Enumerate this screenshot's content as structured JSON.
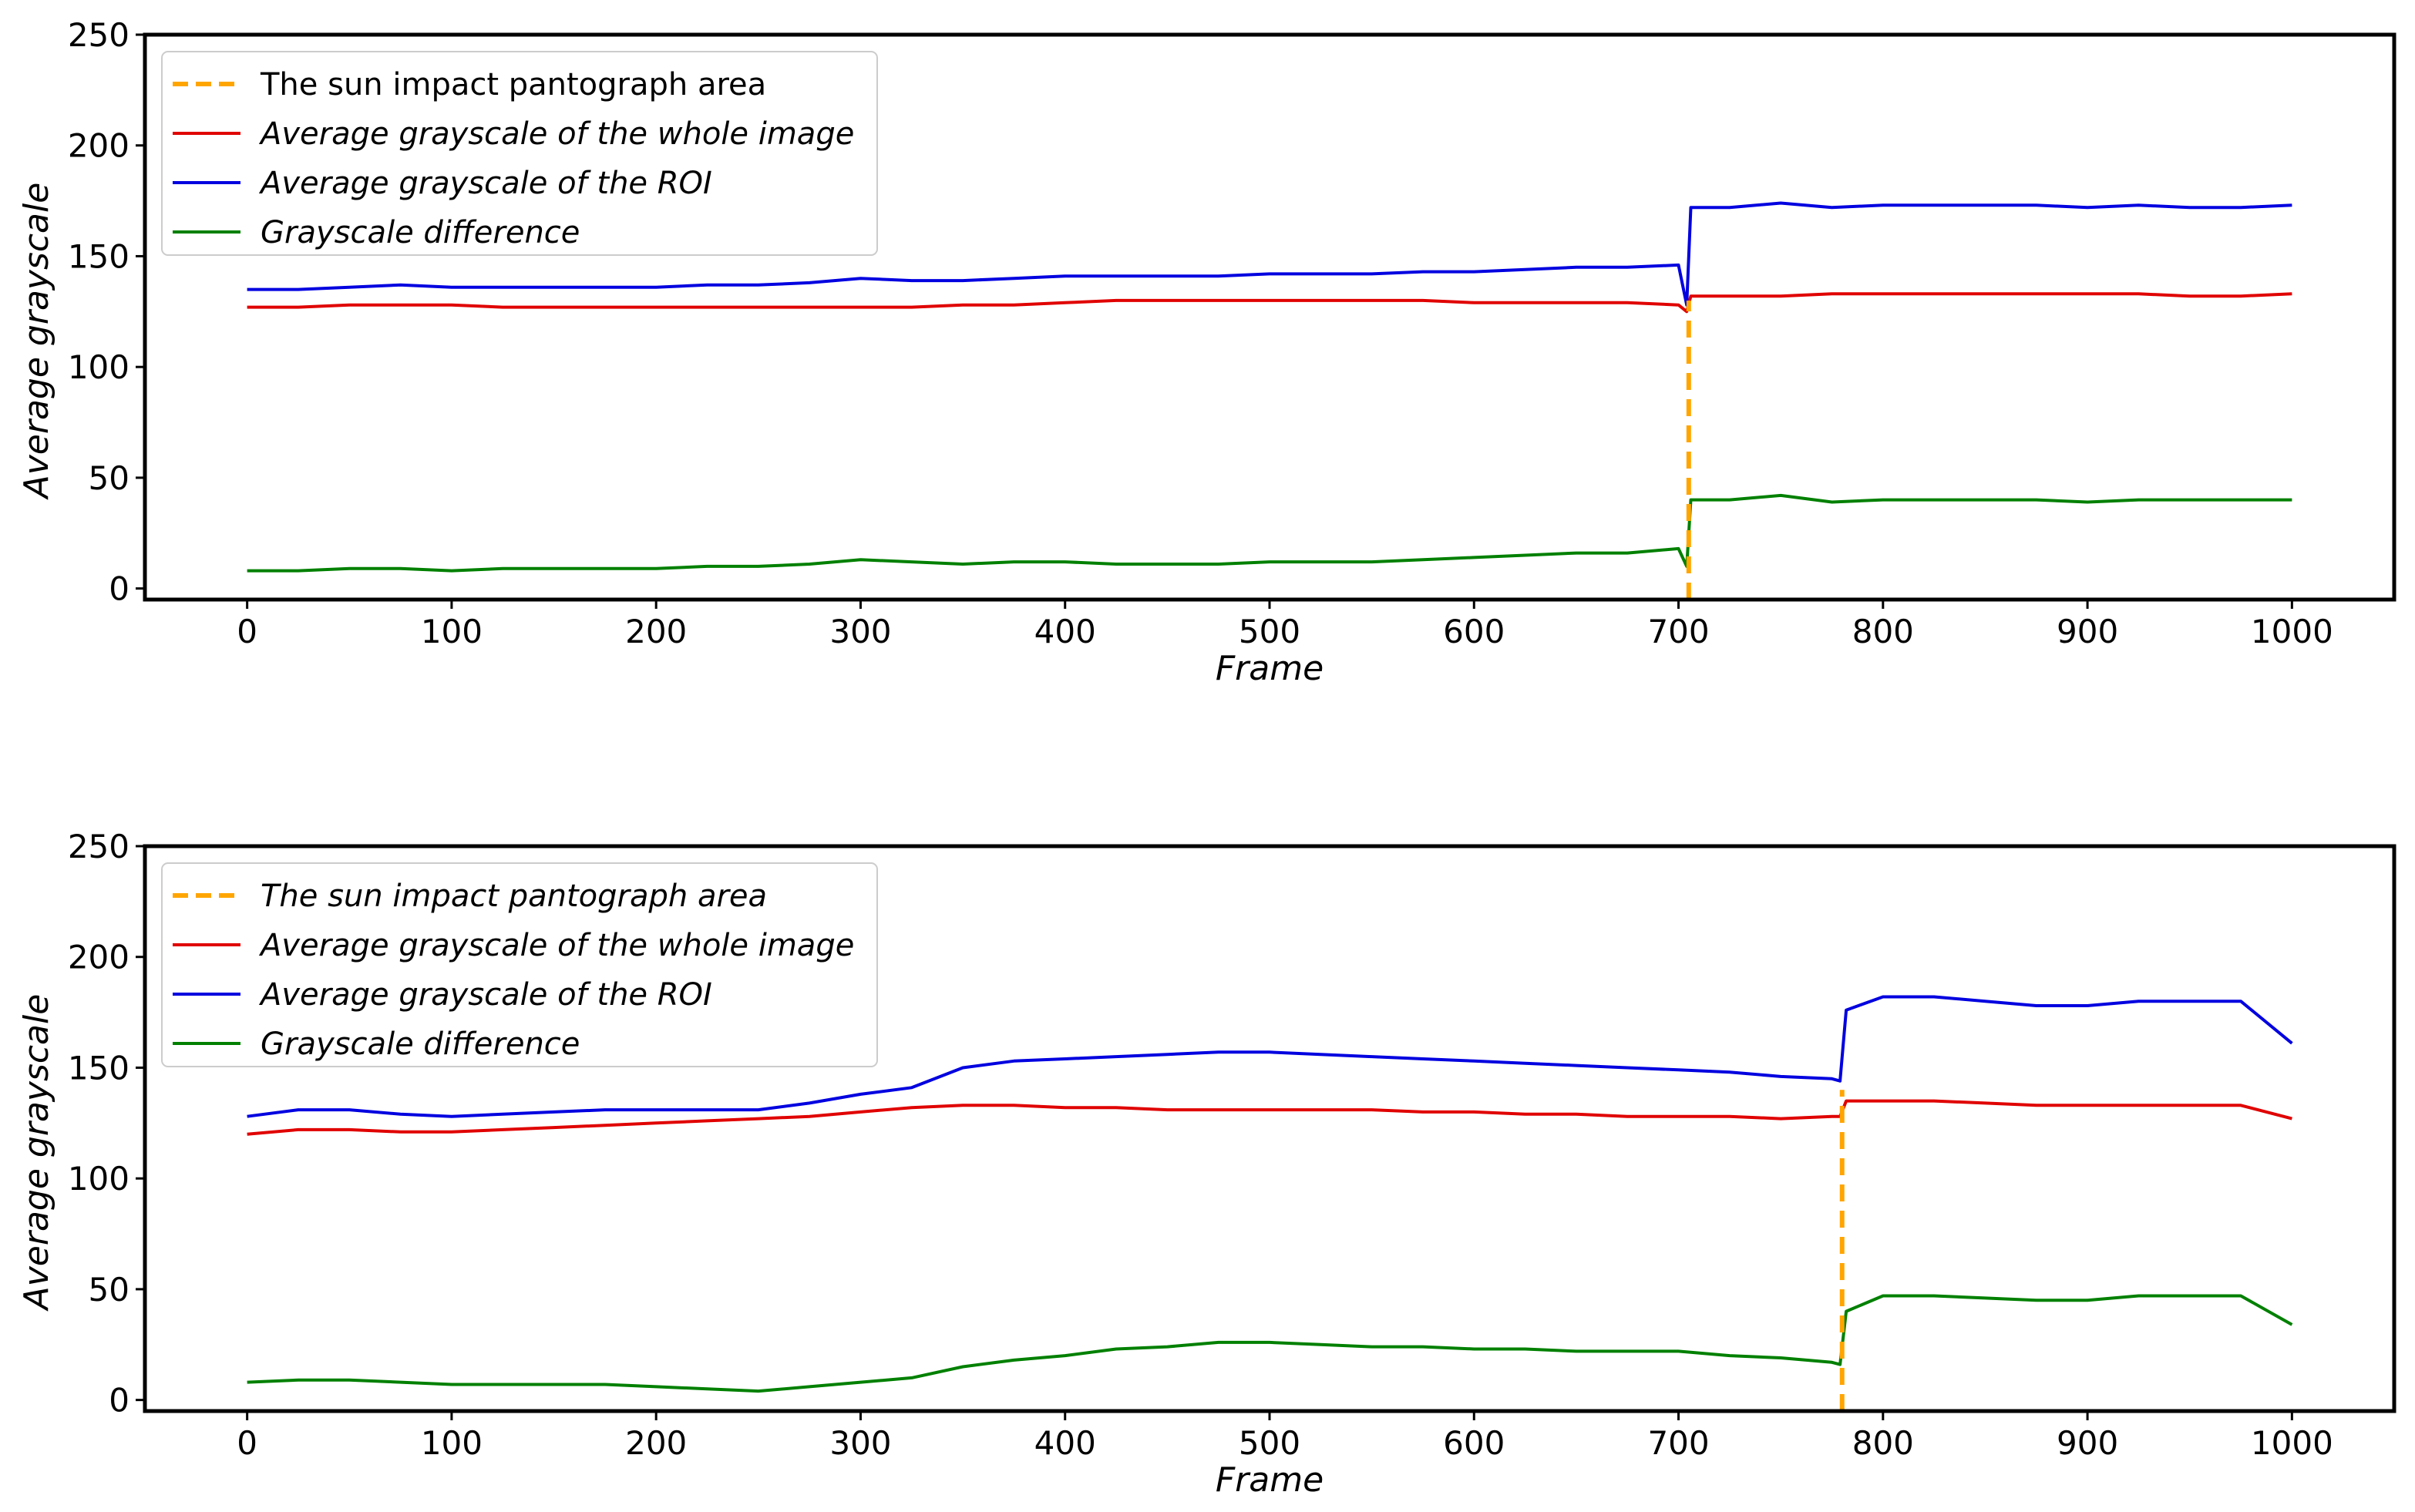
{
  "chart_data": [
    {
      "type": "line",
      "xlabel": "Frame",
      "ylabel": "Average grayscale",
      "xlim": [
        -50,
        1050
      ],
      "ylim": [
        -5,
        250
      ],
      "xticks": [
        0,
        100,
        200,
        300,
        400,
        500,
        600,
        700,
        800,
        900,
        1000
      ],
      "yticks": [
        0,
        50,
        100,
        150,
        200,
        250
      ],
      "legend_position": "top-left",
      "marker": {
        "name": "The sun impact pantograph area",
        "x": 705,
        "y_range": [
          -5,
          130
        ],
        "color": "#FFA500",
        "style": "dashed"
      },
      "series": [
        {
          "name": "Average grayscale of the whole image",
          "color": "#E00000",
          "x": [
            0,
            25,
            50,
            75,
            100,
            125,
            150,
            175,
            200,
            225,
            250,
            275,
            300,
            325,
            350,
            375,
            400,
            425,
            450,
            475,
            500,
            525,
            550,
            575,
            600,
            625,
            650,
            675,
            700,
            704,
            706,
            725,
            750,
            775,
            800,
            825,
            850,
            875,
            900,
            925,
            950,
            975,
            1000
          ],
          "values": [
            127,
            127,
            128,
            128,
            128,
            127,
            127,
            127,
            127,
            127,
            127,
            127,
            127,
            127,
            128,
            128,
            129,
            130,
            130,
            130,
            130,
            130,
            130,
            130,
            129,
            129,
            129,
            129,
            128,
            125,
            132,
            132,
            132,
            133,
            133,
            133,
            133,
            133,
            133,
            133,
            132,
            132,
            133
          ]
        },
        {
          "name": "Average grayscale of the ROI",
          "color": "#0000E0",
          "x": [
            0,
            25,
            50,
            75,
            100,
            125,
            150,
            175,
            200,
            225,
            250,
            275,
            300,
            325,
            350,
            375,
            400,
            425,
            450,
            475,
            500,
            525,
            550,
            575,
            600,
            625,
            650,
            675,
            700,
            704,
            706,
            725,
            750,
            775,
            800,
            825,
            850,
            875,
            900,
            925,
            950,
            975,
            1000
          ],
          "values": [
            135,
            135,
            136,
            137,
            136,
            136,
            136,
            136,
            136,
            137,
            137,
            138,
            140,
            139,
            139,
            140,
            141,
            141,
            141,
            141,
            142,
            142,
            142,
            143,
            143,
            144,
            145,
            145,
            146,
            128,
            172,
            172,
            174,
            172,
            173,
            173,
            173,
            173,
            172,
            173,
            172,
            172,
            173
          ]
        },
        {
          "name": "Grayscale difference",
          "color": "#008000",
          "x": [
            0,
            25,
            50,
            75,
            100,
            125,
            150,
            175,
            200,
            225,
            250,
            275,
            300,
            325,
            350,
            375,
            400,
            425,
            450,
            475,
            500,
            525,
            550,
            575,
            600,
            625,
            650,
            675,
            700,
            704,
            706,
            725,
            750,
            775,
            800,
            825,
            850,
            875,
            900,
            925,
            950,
            975,
            1000
          ],
          "values": [
            8,
            8,
            9,
            9,
            8,
            9,
            9,
            9,
            9,
            10,
            10,
            11,
            13,
            12,
            11,
            12,
            12,
            11,
            11,
            11,
            12,
            12,
            12,
            13,
            14,
            15,
            16,
            16,
            18,
            10,
            40,
            40,
            42,
            39,
            40,
            40,
            40,
            40,
            39,
            40,
            40,
            40,
            40
          ]
        }
      ]
    },
    {
      "type": "line",
      "xlabel": "Frame",
      "ylabel": "Average grayscale",
      "xlim": [
        -50,
        1050
      ],
      "ylim": [
        -5,
        250
      ],
      "xticks": [
        0,
        100,
        200,
        300,
        400,
        500,
        600,
        700,
        800,
        900,
        1000
      ],
      "yticks": [
        0,
        50,
        100,
        150,
        200,
        250
      ],
      "legend_position": "top-left",
      "marker": {
        "name": "The sun impact pantograph area",
        "x": 780,
        "y_range": [
          -5,
          140
        ],
        "color": "#FFA500",
        "style": "dashed"
      },
      "series": [
        {
          "name": "Average grayscale of the whole image",
          "color": "#E00000",
          "x": [
            0,
            25,
            50,
            75,
            100,
            125,
            150,
            175,
            200,
            225,
            250,
            275,
            300,
            325,
            350,
            375,
            400,
            425,
            450,
            475,
            500,
            525,
            550,
            575,
            600,
            625,
            650,
            675,
            700,
            725,
            750,
            775,
            779,
            782,
            800,
            825,
            850,
            875,
            900,
            925,
            950,
            975,
            1000
          ],
          "values": [
            120,
            122,
            122,
            121,
            121,
            122,
            123,
            124,
            125,
            126,
            127,
            128,
            130,
            132,
            133,
            133,
            132,
            132,
            131,
            131,
            131,
            131,
            131,
            130,
            130,
            129,
            129,
            128,
            128,
            128,
            127,
            128,
            128,
            135,
            135,
            135,
            134,
            133,
            133,
            133,
            133,
            133,
            127
          ]
        },
        {
          "name": "Average grayscale of the ROI",
          "color": "#0000E0",
          "x": [
            0,
            25,
            50,
            75,
            100,
            125,
            150,
            175,
            200,
            225,
            250,
            275,
            300,
            325,
            350,
            375,
            400,
            425,
            450,
            475,
            500,
            525,
            550,
            575,
            600,
            625,
            650,
            675,
            700,
            725,
            750,
            775,
            779,
            782,
            800,
            825,
            850,
            875,
            900,
            925,
            950,
            975,
            1000
          ],
          "values": [
            128,
            131,
            131,
            129,
            128,
            129,
            130,
            131,
            131,
            131,
            131,
            134,
            138,
            141,
            150,
            153,
            154,
            155,
            156,
            157,
            157,
            156,
            155,
            154,
            153,
            152,
            151,
            150,
            149,
            148,
            146,
            145,
            144,
            176,
            182,
            182,
            180,
            178,
            178,
            180,
            180,
            180,
            161
          ]
        },
        {
          "name": "Grayscale difference",
          "color": "#008000",
          "x": [
            0,
            25,
            50,
            75,
            100,
            125,
            150,
            175,
            200,
            225,
            250,
            275,
            300,
            325,
            350,
            375,
            400,
            425,
            450,
            475,
            500,
            525,
            550,
            575,
            600,
            625,
            650,
            675,
            700,
            725,
            750,
            775,
            779,
            782,
            800,
            825,
            850,
            875,
            900,
            925,
            950,
            975,
            1000
          ],
          "values": [
            8,
            9,
            9,
            8,
            7,
            7,
            7,
            7,
            6,
            5,
            4,
            6,
            8,
            10,
            15,
            18,
            20,
            23,
            24,
            26,
            26,
            25,
            24,
            24,
            23,
            23,
            22,
            22,
            22,
            20,
            19,
            17,
            16,
            40,
            47,
            47,
            46,
            45,
            45,
            47,
            47,
            47,
            34
          ]
        }
      ]
    }
  ]
}
